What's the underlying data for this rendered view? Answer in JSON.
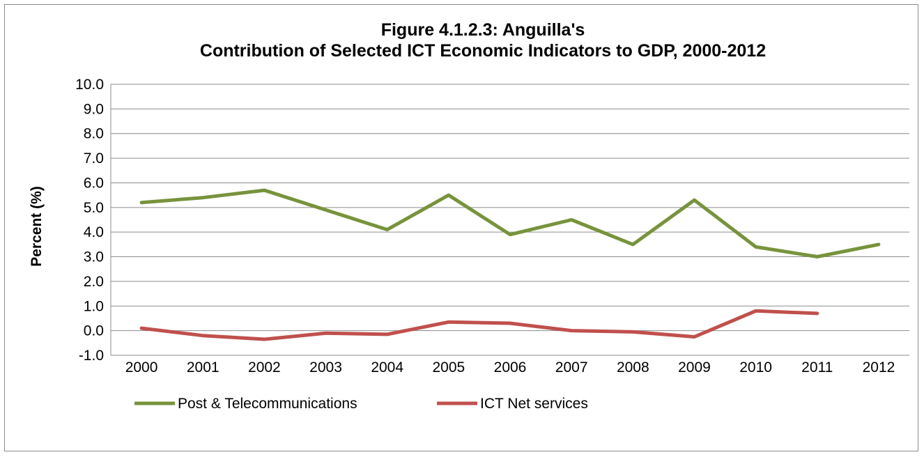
{
  "chart_data": {
    "type": "line",
    "title_line1": "Figure 4.1.2.3:    Anguilla's",
    "title_line2": "Contribution of Selected ICT  Economic Indicators to GDP, 2000-2012",
    "xlabel": "",
    "ylabel": "Percent (%)",
    "ylim": [
      -1.0,
      10.0
    ],
    "ytick_step": 1.0,
    "ytick_labels": [
      "-1.0",
      "0.0",
      "1.0",
      "2.0",
      "3.0",
      "4.0",
      "5.0",
      "6.0",
      "7.0",
      "8.0",
      "9.0",
      "10.0"
    ],
    "categories": [
      "2000",
      "2001",
      "2002",
      "2003",
      "2004",
      "2005",
      "2006",
      "2007",
      "2008",
      "2009",
      "2010",
      "2011",
      "2012"
    ],
    "grid": true,
    "legend_position": "bottom-left",
    "series": [
      {
        "name": "Post & Telecommunications",
        "color": "#77933c",
        "values": [
          5.2,
          5.4,
          5.7,
          4.9,
          4.1,
          5.5,
          3.9,
          4.5,
          3.5,
          5.3,
          3.4,
          3.0,
          3.5
        ]
      },
      {
        "name": "ICT Net services",
        "color": "#c0504d",
        "values": [
          0.1,
          -0.2,
          -0.35,
          -0.1,
          -0.15,
          0.35,
          0.3,
          0.0,
          -0.05,
          -0.25,
          0.8,
          0.7,
          null
        ]
      }
    ]
  }
}
